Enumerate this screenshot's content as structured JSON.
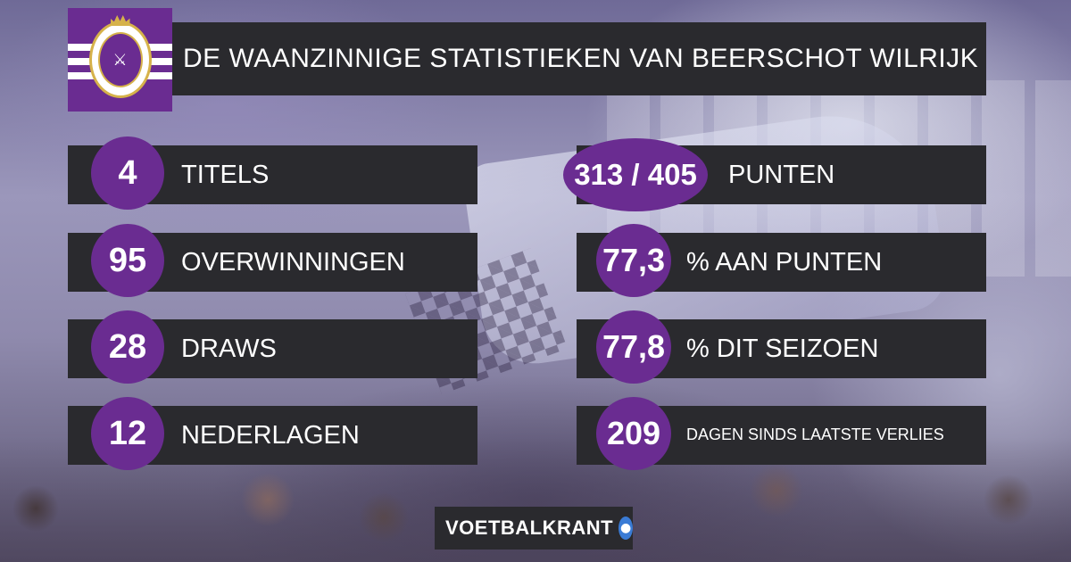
{
  "header": {
    "title": "DE WAANZINNIGE STATISTIEKEN VAN BEERSCHOT WILRIJK"
  },
  "colors": {
    "accent": "#6a2c91",
    "bar": "#2a2a2e",
    "text": "#ffffff"
  },
  "stats_left": [
    {
      "value": "4",
      "label": "TITELS"
    },
    {
      "value": "95",
      "label": "OVERWINNINGEN"
    },
    {
      "value": "28",
      "label": "DRAWS"
    },
    {
      "value": "12",
      "label": "NEDERLAGEN"
    }
  ],
  "stats_right": [
    {
      "value": "313 / 405",
      "label": "PUNTEN"
    },
    {
      "value": "77,3",
      "label": "% AAN PUNTEN"
    },
    {
      "value": "77,8",
      "label": "% DIT SEIZOEN"
    },
    {
      "value": "209",
      "label": "DAGEN SINDS LAATSTE VERLIES"
    }
  ],
  "footer": {
    "brand": "VOETBALKRANT"
  },
  "icons": {
    "club_crest": "club-crest-icon",
    "brand_mark": "brand-mark-icon"
  }
}
